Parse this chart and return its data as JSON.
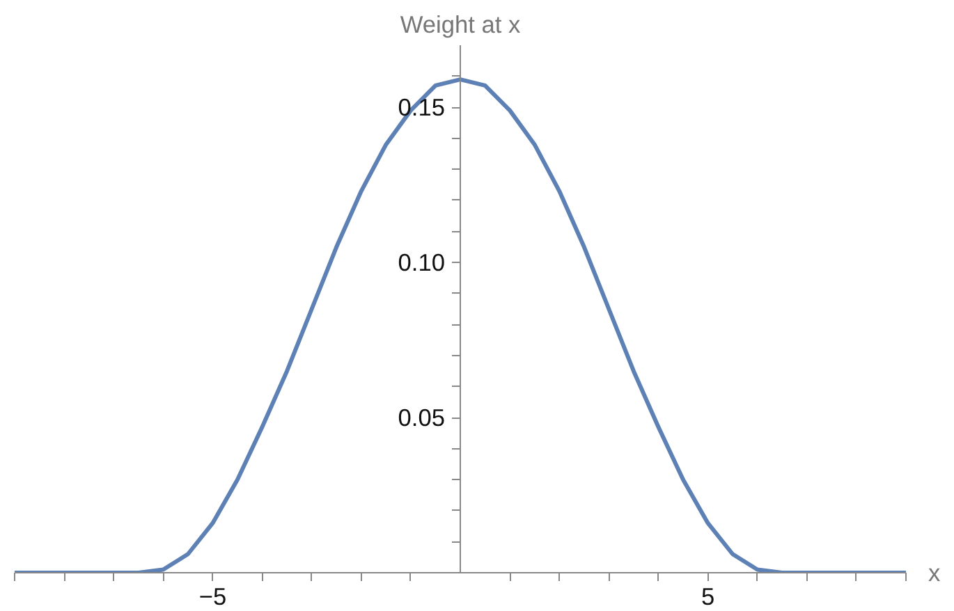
{
  "chart_data": {
    "type": "line",
    "xlabel": "x",
    "ylabel": "Weight at x",
    "x": [
      -9,
      -8,
      -7,
      -6.5,
      -6,
      -5.5,
      -5,
      -4.5,
      -4,
      -3.5,
      -3,
      -2.5,
      -2,
      -1.5,
      -1,
      -0.5,
      0,
      0.5,
      1,
      1.5,
      2,
      2.5,
      3,
      3.5,
      4,
      4.5,
      5,
      5.5,
      6,
      6.5,
      7,
      8,
      9
    ],
    "series": [
      {
        "color": "#5e81b5",
        "values": [
          0,
          0,
          0,
          0,
          0.001,
          0.006,
          0.016,
          0.03,
          0.047,
          0.065,
          0.085,
          0.105,
          0.123,
          0.138,
          0.149,
          0.157,
          0.159,
          0.157,
          0.149,
          0.138,
          0.123,
          0.105,
          0.085,
          0.065,
          0.047,
          0.03,
          0.016,
          0.006,
          0.001,
          0,
          0,
          0,
          0
        ]
      }
    ],
    "xlim": [
      -9,
      9
    ],
    "ylim": [
      0,
      0.17
    ],
    "xticks": [
      {
        "value": -9,
        "label": null
      },
      {
        "value": -8,
        "label": null
      },
      {
        "value": -7,
        "label": null
      },
      {
        "value": -6,
        "label": null
      },
      {
        "value": -5,
        "label": "−5"
      },
      {
        "value": -4,
        "label": null
      },
      {
        "value": -3,
        "label": null
      },
      {
        "value": -2,
        "label": null
      },
      {
        "value": -1,
        "label": null
      },
      {
        "value": 1,
        "label": null
      },
      {
        "value": 2,
        "label": null
      },
      {
        "value": 3,
        "label": null
      },
      {
        "value": 4,
        "label": null
      },
      {
        "value": 5,
        "label": "5"
      },
      {
        "value": 6,
        "label": null
      },
      {
        "value": 7,
        "label": null
      },
      {
        "value": 8,
        "label": null
      },
      {
        "value": 9,
        "label": null
      }
    ],
    "yticks": [
      {
        "value": 0.01,
        "label": null
      },
      {
        "value": 0.02,
        "label": null
      },
      {
        "value": 0.03,
        "label": null
      },
      {
        "value": 0.04,
        "label": null
      },
      {
        "value": 0.05,
        "label": "0.05"
      },
      {
        "value": 0.06,
        "label": null
      },
      {
        "value": 0.07,
        "label": null
      },
      {
        "value": 0.08,
        "label": null
      },
      {
        "value": 0.09,
        "label": null
      },
      {
        "value": 0.1,
        "label": "0.10"
      },
      {
        "value": 0.11,
        "label": null
      },
      {
        "value": 0.12,
        "label": null
      },
      {
        "value": 0.13,
        "label": null
      },
      {
        "value": 0.14,
        "label": null
      },
      {
        "value": 0.15,
        "label": "0.15"
      },
      {
        "value": 0.16,
        "label": null
      }
    ],
    "grid": false,
    "marker": "none",
    "line_style": "solid"
  }
}
